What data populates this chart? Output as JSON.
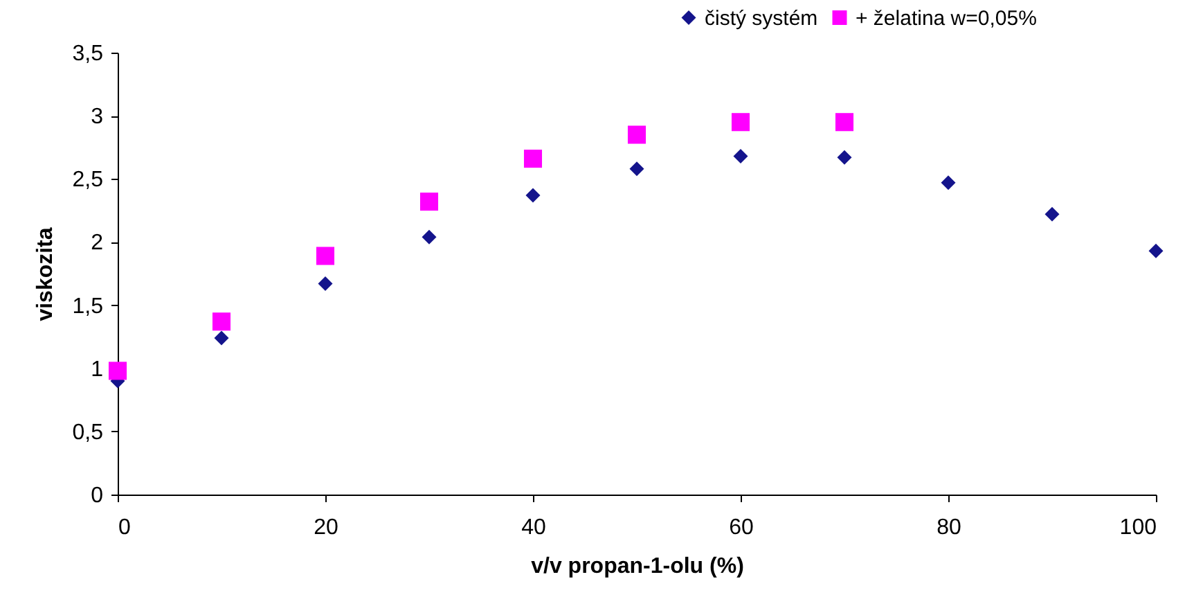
{
  "chart_data": {
    "type": "scatter",
    "xlabel": "v/v propan-1-olu (%)",
    "ylabel": "viskozita",
    "xlim": [
      0,
      100
    ],
    "xticks": [
      0,
      20,
      40,
      60,
      80,
      100
    ],
    "ylim": [
      0,
      3.5
    ],
    "yticks": [
      0,
      {
        "value": 0.5,
        "label": "0,5"
      },
      1,
      {
        "value": 1.5,
        "label": "1,5"
      },
      2,
      {
        "value": 2.5,
        "label": "2,5"
      },
      3,
      {
        "value": 3.5,
        "label": "3,5"
      }
    ],
    "grid": false,
    "legend": "top right",
    "series": [
      {
        "name": "čistý systém",
        "color": "#14148c",
        "marker": "diamond",
        "x": [
          0,
          10,
          20,
          30,
          40,
          50,
          60,
          70,
          80,
          90,
          100
        ],
        "values": [
          0.9,
          1.24,
          1.67,
          2.04,
          2.37,
          2.58,
          2.68,
          2.67,
          2.47,
          2.22,
          1.93
        ]
      },
      {
        "name": "+ želatina w=0,05%",
        "color": "#ff00ff",
        "marker": "square",
        "x": [
          0,
          10,
          20,
          30,
          40,
          50,
          60,
          70
        ],
        "values": [
          0.98,
          1.37,
          1.89,
          2.32,
          2.66,
          2.85,
          2.95,
          2.95
        ]
      }
    ]
  }
}
